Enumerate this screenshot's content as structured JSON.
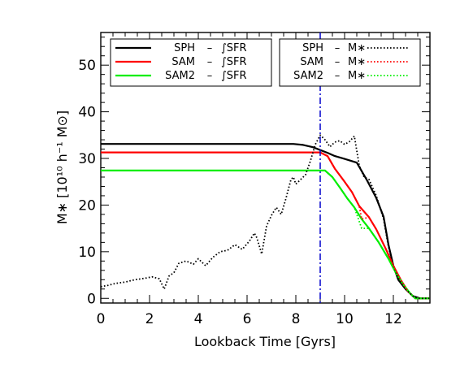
{
  "chart_data": {
    "type": "line",
    "xlabel": "Lookback Time [Gyrs]",
    "ylabel": "M∗ [10¹⁰ h⁻¹ M⊙]",
    "xlim": [
      0,
      13.5
    ],
    "ylim": [
      -1,
      57
    ],
    "xticks": [
      "0",
      "2",
      "4",
      "6",
      "8",
      "10",
      "12"
    ],
    "yticks": [
      "0",
      "10",
      "20",
      "30",
      "40",
      "50"
    ],
    "vline": {
      "x": 9.0,
      "color": "#0000cc",
      "style": "dash-dot"
    },
    "legend_left": [
      {
        "label": "SPH",
        "sep": "–",
        "quantity": "∫SFR",
        "color": "#000000"
      },
      {
        "label": "SAM",
        "sep": "–",
        "quantity": "∫SFR",
        "color": "#ff0000"
      },
      {
        "label": "SAM2",
        "sep": "–",
        "quantity": "∫SFR",
        "color": "#00ee00"
      }
    ],
    "legend_right": [
      {
        "label": "SPH",
        "sep": "–",
        "quantity": "M∗",
        "color": "#000000"
      },
      {
        "label": "SAM",
        "sep": "–",
        "quantity": "M∗",
        "color": "#ff0000"
      },
      {
        "label": "SAM2",
        "sep": "–",
        "quantity": "M∗",
        "color": "#00ee00"
      }
    ],
    "series": [
      {
        "name": "SPH – ∫SFR",
        "color": "#000000",
        "style": "solid",
        "x": [
          0,
          7.9,
          8.3,
          8.7,
          9.0,
          9.3,
          9.6,
          10.0,
          10.5,
          10.9,
          11.3,
          11.6,
          11.8,
          12.0,
          12.2,
          12.5,
          12.8,
          13.1,
          13.5
        ],
        "y": [
          33.1,
          33.1,
          32.9,
          32.4,
          31.8,
          31.2,
          30.5,
          29.9,
          29.1,
          25.5,
          21.5,
          17.5,
          11.5,
          7.0,
          4.0,
          2.0,
          0.5,
          0,
          0
        ]
      },
      {
        "name": "SAM – ∫SFR",
        "color": "#ff0000",
        "style": "solid",
        "x": [
          0,
          9.0,
          9.3,
          9.6,
          10.0,
          10.3,
          10.6,
          11.0,
          11.3,
          11.7,
          12.0,
          12.3,
          12.6,
          12.9,
          13.5
        ],
        "y": [
          31.3,
          31.3,
          30.5,
          27.8,
          25.0,
          22.8,
          19.8,
          17.4,
          14.8,
          10.5,
          7.0,
          4.0,
          1.5,
          0,
          0
        ]
      },
      {
        "name": "SAM2 – ∫SFR",
        "color": "#00ee00",
        "style": "solid",
        "x": [
          0,
          9.2,
          9.5,
          9.8,
          10.1,
          10.4,
          10.7,
          11.0,
          11.4,
          11.8,
          12.1,
          12.4,
          12.7,
          12.9,
          13.5
        ],
        "y": [
          27.4,
          27.4,
          26.0,
          23.8,
          21.5,
          19.5,
          17.0,
          15.0,
          12.0,
          8.5,
          5.5,
          3.0,
          1.0,
          0,
          0
        ]
      },
      {
        "name": "SPH – M∗",
        "color": "#000000",
        "style": "dotted",
        "x": [
          0,
          0.3,
          0.6,
          1.0,
          1.4,
          1.8,
          2.1,
          2.4,
          2.6,
          2.8,
          3.0,
          3.2,
          3.5,
          3.8,
          4.0,
          4.3,
          4.6,
          4.9,
          5.2,
          5.5,
          5.8,
          6.1,
          6.3,
          6.4,
          6.6,
          6.8,
          7.0,
          7.2,
          7.4,
          7.6,
          7.8,
          7.9,
          8.0,
          8.2,
          8.4,
          8.6,
          8.8,
          9.0,
          9.2,
          9.4,
          9.6,
          9.8,
          10.0,
          10.2,
          10.4,
          10.6,
          10.8,
          11.0,
          11.3,
          11.6,
          11.8,
          12.0,
          12.2,
          12.5,
          12.8,
          13.0,
          13.5
        ],
        "y": [
          2.5,
          2.8,
          3.2,
          3.5,
          4.0,
          4.3,
          4.6,
          4.2,
          2.0,
          4.8,
          5.5,
          7.5,
          8.0,
          7.3,
          8.5,
          7.0,
          8.8,
          10.0,
          10.3,
          11.5,
          10.5,
          12.3,
          14.0,
          13.0,
          9.5,
          15.5,
          17.8,
          19.5,
          18.0,
          21.5,
          25.5,
          26.0,
          24.5,
          25.5,
          26.5,
          29.5,
          33.0,
          35.0,
          34.0,
          32.5,
          33.5,
          33.8,
          33.0,
          33.6,
          34.8,
          28.5,
          26.0,
          25.5,
          22.0,
          17.0,
          11.0,
          7.0,
          4.5,
          2.0,
          0.5,
          0,
          0
        ]
      },
      {
        "name": "SAM – M∗",
        "color": "#ff0000",
        "style": "dotted",
        "x": [
          9.0,
          9.3,
          9.6,
          10.0,
          10.3,
          10.6,
          10.7,
          11.0,
          11.3,
          11.7,
          12.0,
          12.3,
          12.6
        ],
        "y": [
          31.3,
          30.5,
          27.8,
          25.0,
          22.8,
          19.8,
          17.0,
          17.4,
          14.8,
          10.5,
          7.0,
          4.0,
          1.5
        ]
      },
      {
        "name": "SAM2 – M∗",
        "color": "#00ee00",
        "style": "dotted",
        "x": [
          9.2,
          9.5,
          9.8,
          10.1,
          10.4,
          10.6,
          10.7,
          11.0,
          11.4,
          11.8,
          12.1,
          12.4
        ],
        "y": [
          27.4,
          26.0,
          23.8,
          21.5,
          19.5,
          16.5,
          15.0,
          15.0,
          12.0,
          8.5,
          5.5,
          3.0
        ]
      }
    ]
  }
}
